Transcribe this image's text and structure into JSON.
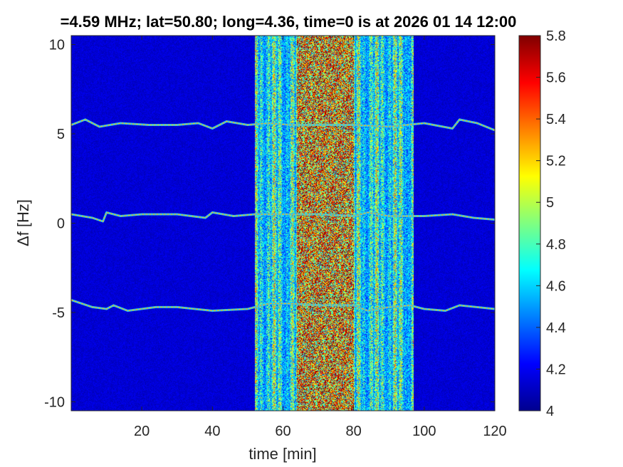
{
  "chart_data": {
    "type": "heatmap",
    "title": "=4.59 MHz;  lat=50.80; long=4.36, time=0 is at 2026 01 14 12:00",
    "xlabel": "time [min]",
    "ylabel": "Δf [Hz]",
    "xlim": [
      0,
      120
    ],
    "ylim": [
      -10.5,
      10.5
    ],
    "x_ticks": [
      20,
      40,
      60,
      80,
      100,
      120
    ],
    "y_ticks": [
      -10,
      -5,
      0,
      5,
      10
    ],
    "colorbar": {
      "colormap": "jet",
      "clim": [
        4,
        5.8
      ],
      "ticks": [
        "4",
        "4.2",
        "4.4",
        "4.6",
        "4.8",
        "5",
        "5.2",
        "5.4",
        "5.6",
        "5.8"
      ]
    },
    "background_level": 4.15,
    "noise_bands": [
      {
        "x_start": 52,
        "x_end": 64,
        "level": "medium"
      },
      {
        "x_start": 64,
        "x_end": 80,
        "level": "high"
      },
      {
        "x_start": 80,
        "x_end": 97,
        "level": "medium"
      }
    ],
    "traces": [
      {
        "name": "upper",
        "points": [
          [
            0,
            5.5
          ],
          [
            4,
            5.8
          ],
          [
            8,
            5.4
          ],
          [
            14,
            5.6
          ],
          [
            22,
            5.5
          ],
          [
            30,
            5.5
          ],
          [
            36,
            5.6
          ],
          [
            40,
            5.3
          ],
          [
            44,
            5.7
          ],
          [
            50,
            5.5
          ],
          [
            56,
            5.6
          ],
          [
            62,
            5.5
          ],
          [
            70,
            5.5
          ],
          [
            80,
            5.5
          ],
          [
            90,
            5.4
          ],
          [
            100,
            5.6
          ],
          [
            108,
            5.3
          ],
          [
            110,
            5.8
          ],
          [
            115,
            5.6
          ],
          [
            120,
            5.2
          ]
        ]
      },
      {
        "name": "middle",
        "points": [
          [
            0,
            0.5
          ],
          [
            6,
            0.3
          ],
          [
            9,
            0.1
          ],
          [
            10,
            0.6
          ],
          [
            14,
            0.4
          ],
          [
            20,
            0.5
          ],
          [
            30,
            0.5
          ],
          [
            38,
            0.3
          ],
          [
            40,
            0.6
          ],
          [
            46,
            0.4
          ],
          [
            52,
            0.5
          ],
          [
            60,
            0.5
          ],
          [
            70,
            0.5
          ],
          [
            80,
            0.4
          ],
          [
            84,
            0.6
          ],
          [
            90,
            0.4
          ],
          [
            100,
            0.4
          ],
          [
            108,
            0.5
          ],
          [
            114,
            0.3
          ],
          [
            120,
            0.2
          ]
        ]
      },
      {
        "name": "lower",
        "points": [
          [
            0,
            -4.3
          ],
          [
            6,
            -4.7
          ],
          [
            10,
            -4.8
          ],
          [
            12,
            -4.6
          ],
          [
            16,
            -4.9
          ],
          [
            24,
            -4.7
          ],
          [
            30,
            -4.7
          ],
          [
            40,
            -4.9
          ],
          [
            50,
            -4.8
          ],
          [
            56,
            -4.5
          ],
          [
            62,
            -4.5
          ],
          [
            70,
            -4.6
          ],
          [
            80,
            -4.6
          ],
          [
            84,
            -4.9
          ],
          [
            90,
            -4.7
          ],
          [
            96,
            -4.6
          ],
          [
            100,
            -4.8
          ],
          [
            106,
            -4.9
          ],
          [
            110,
            -4.6
          ],
          [
            120,
            -4.8
          ]
        ]
      }
    ]
  }
}
